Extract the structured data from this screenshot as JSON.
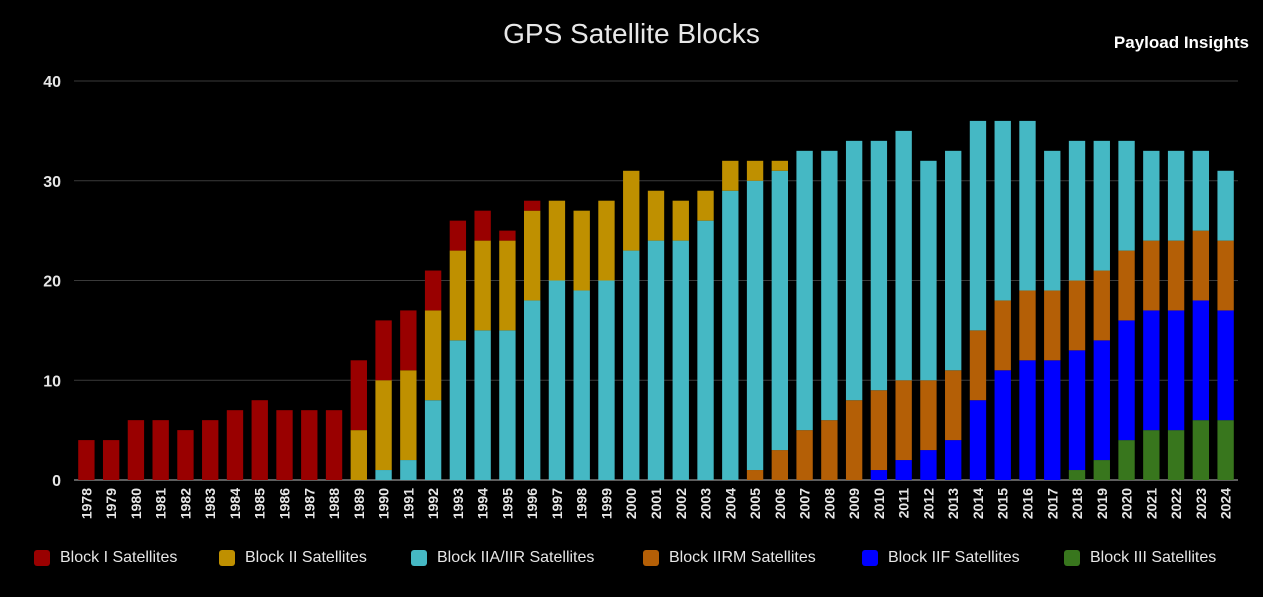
{
  "title": "GPS Satellite Blocks",
  "watermark": "Payload Insights",
  "chart_data": {
    "type": "bar",
    "stacked": true,
    "title": "GPS Satellite Blocks",
    "xlabel": "",
    "ylabel": "",
    "ylim": [
      0,
      40
    ],
    "yticks": [
      0,
      10,
      20,
      30,
      40
    ],
    "grid": true,
    "legend_position": "bottom",
    "categories": [
      "1978",
      "1979",
      "1980",
      "1981",
      "1982",
      "1983",
      "1984",
      "1985",
      "1986",
      "1987",
      "1988",
      "1989",
      "1990",
      "1991",
      "1992",
      "1993",
      "1994",
      "1995",
      "1996",
      "1997",
      "1998",
      "1999",
      "2000",
      "2001",
      "2002",
      "2003",
      "2004",
      "2005",
      "2006",
      "2007",
      "2008",
      "2009",
      "2010",
      "2011",
      "2012",
      "2013",
      "2014",
      "2015",
      "2016",
      "2017",
      "2018",
      "2019",
      "2020",
      "2021",
      "2022",
      "2023",
      "2024"
    ],
    "series": [
      {
        "name": "Block III Satellites",
        "color": "#38761d",
        "values": [
          0,
          0,
          0,
          0,
          0,
          0,
          0,
          0,
          0,
          0,
          0,
          0,
          0,
          0,
          0,
          0,
          0,
          0,
          0,
          0,
          0,
          0,
          0,
          0,
          0,
          0,
          0,
          0,
          0,
          0,
          0,
          0,
          0,
          0,
          0,
          0,
          0,
          0,
          0,
          0,
          1,
          2,
          4,
          5,
          5,
          6,
          6
        ]
      },
      {
        "name": "Block IIF Satellites",
        "color": "#0000ff",
        "values": [
          0,
          0,
          0,
          0,
          0,
          0,
          0,
          0,
          0,
          0,
          0,
          0,
          0,
          0,
          0,
          0,
          0,
          0,
          0,
          0,
          0,
          0,
          0,
          0,
          0,
          0,
          0,
          0,
          0,
          0,
          0,
          0,
          1,
          2,
          3,
          4,
          8,
          11,
          12,
          12,
          12,
          12,
          12,
          12,
          12,
          12,
          11
        ]
      },
      {
        "name": "Block IIRM Satellites",
        "color": "#b45f06",
        "values": [
          0,
          0,
          0,
          0,
          0,
          0,
          0,
          0,
          0,
          0,
          0,
          0,
          0,
          0,
          0,
          0,
          0,
          0,
          0,
          0,
          0,
          0,
          0,
          0,
          0,
          0,
          0,
          1,
          3,
          5,
          6,
          8,
          8,
          8,
          7,
          7,
          7,
          7,
          7,
          7,
          7,
          7,
          7,
          7,
          7,
          7,
          7
        ]
      },
      {
        "name": "Block IIA/IIR Satellites",
        "color": "#45b8c4",
        "values": [
          0,
          0,
          0,
          0,
          0,
          0,
          0,
          0,
          0,
          0,
          0,
          0,
          1,
          2,
          8,
          14,
          15,
          15,
          18,
          20,
          19,
          20,
          23,
          24,
          24,
          26,
          29,
          29,
          28,
          28,
          27,
          26,
          25,
          25,
          22,
          22,
          21,
          18,
          17,
          14,
          14,
          13,
          11,
          9,
          9,
          8,
          7
        ]
      },
      {
        "name": "Block II Satellites",
        "color": "#bf9000",
        "values": [
          0,
          0,
          0,
          0,
          0,
          0,
          0,
          0,
          0,
          0,
          0,
          5,
          9,
          9,
          9,
          9,
          9,
          9,
          9,
          8,
          8,
          8,
          8,
          5,
          4,
          3,
          3,
          2,
          1,
          0,
          0,
          0,
          0,
          0,
          0,
          0,
          0,
          0,
          0,
          0,
          0,
          0,
          0,
          0,
          0,
          0,
          0
        ]
      },
      {
        "name": "Block I Satellites",
        "color": "#990000",
        "values": [
          4,
          4,
          6,
          6,
          5,
          6,
          7,
          8,
          7,
          7,
          7,
          7,
          6,
          6,
          4,
          3,
          3,
          1,
          1,
          0,
          0,
          0,
          0,
          0,
          0,
          0,
          0,
          0,
          0,
          0,
          0,
          0,
          0,
          0,
          0,
          0,
          0,
          0,
          0,
          0,
          0,
          0,
          0,
          0,
          0,
          0,
          0
        ]
      }
    ]
  },
  "legend": [
    {
      "label": "Block I Satellites",
      "color": "#990000"
    },
    {
      "label": "Block II Satellites",
      "color": "#bf9000"
    },
    {
      "label": "Block IIA/IIR Satellites",
      "color": "#45b8c4"
    },
    {
      "label": "Block IIRM Satellites",
      "color": "#b45f06"
    },
    {
      "label": "Block IIF Satellites",
      "color": "#0000ff"
    },
    {
      "label": "Block III Satellites",
      "color": "#38761d"
    }
  ]
}
